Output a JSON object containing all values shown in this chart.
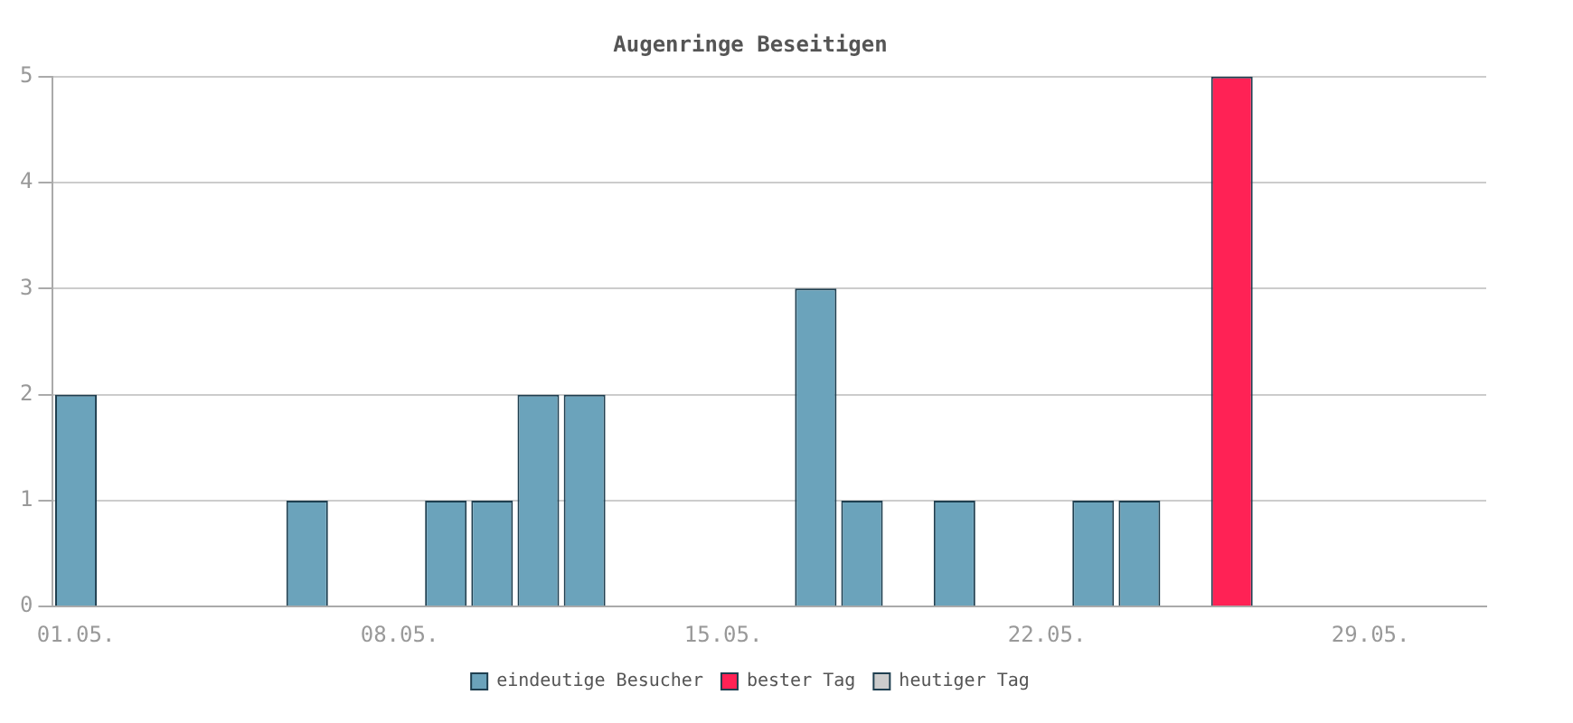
{
  "chart_data": {
    "type": "bar",
    "title": "Augenringe Beseitigen",
    "categories": [
      "01.05.",
      null,
      null,
      null,
      null,
      null,
      null,
      "08.05.",
      null,
      null,
      null,
      null,
      null,
      null,
      "15.05.",
      null,
      null,
      null,
      null,
      null,
      null,
      "22.05.",
      null,
      null,
      null,
      null,
      null,
      null,
      "29.05.",
      null,
      null
    ],
    "series": [
      {
        "name": "eindeutige Besucher",
        "color": "#6ba3bb",
        "values": [
          2,
          0,
          0,
          0,
          0,
          1,
          0,
          0,
          1,
          1,
          2,
          2,
          0,
          0,
          0,
          0,
          3,
          1,
          0,
          1,
          0,
          0,
          1,
          1,
          0,
          null,
          0,
          0,
          0,
          0,
          0
        ]
      },
      {
        "name": "bester Tag",
        "color": "#ff2255",
        "values": [
          null,
          null,
          null,
          null,
          null,
          null,
          null,
          null,
          null,
          null,
          null,
          null,
          null,
          null,
          null,
          null,
          null,
          null,
          null,
          null,
          null,
          null,
          null,
          null,
          null,
          5,
          null,
          null,
          null,
          null,
          null
        ]
      },
      {
        "name": "heutiger Tag",
        "color": "#cccccc",
        "values": [
          null,
          null,
          null,
          null,
          null,
          null,
          null,
          null,
          null,
          null,
          null,
          null,
          null,
          null,
          null,
          null,
          null,
          null,
          null,
          null,
          null,
          null,
          null,
          null,
          null,
          null,
          null,
          null,
          null,
          null,
          null
        ]
      }
    ],
    "stacked": true,
    "ylim": [
      0,
      5
    ],
    "yticks": [
      0,
      1,
      2,
      3,
      4,
      5
    ],
    "grid": "y",
    "legend": "bottom"
  }
}
